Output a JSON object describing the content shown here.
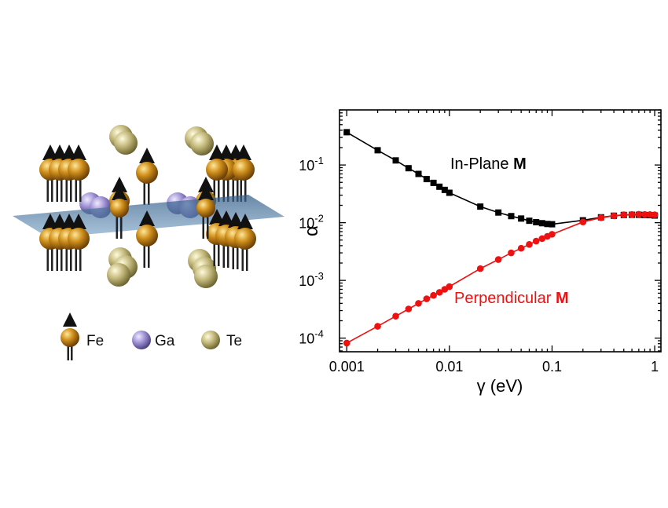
{
  "structure_legend": {
    "items": [
      {
        "label": "Fe",
        "icon": "iron-atom-with-spin-arrow-icon",
        "color": "#c7881a"
      },
      {
        "label": "Ga",
        "icon": "gallium-atom-icon",
        "color": "#9b8fd0"
      },
      {
        "label": "Te",
        "icon": "tellurium-atom-icon",
        "color": "#bfb575"
      }
    ]
  },
  "chart_data": {
    "type": "line",
    "xlabel": "γ (eV)",
    "ylabel": "α",
    "xscale": "log",
    "yscale": "log",
    "xlim": [
      0.00085,
      1.15
    ],
    "ylim": [
      5.8e-05,
      0.9
    ],
    "x_ticks": [
      {
        "value": 0.001,
        "label": "0.001"
      },
      {
        "value": 0.01,
        "label": "0.01"
      },
      {
        "value": 0.1,
        "label": "0.1"
      },
      {
        "value": 1,
        "label": "1"
      }
    ],
    "y_ticks": [
      {
        "value": 0.0001,
        "mantissa": "10",
        "exponent": "-4"
      },
      {
        "value": 0.001,
        "mantissa": "10",
        "exponent": "-3"
      },
      {
        "value": 0.01,
        "mantissa": "10",
        "exponent": "-2"
      },
      {
        "value": 0.1,
        "mantissa": "10",
        "exponent": "-1"
      }
    ],
    "grid": false,
    "series": [
      {
        "name_text": "In-Plane ",
        "name_bold": "M",
        "color": "#000000",
        "marker": "square",
        "x": [
          0.001,
          0.002,
          0.003,
          0.004,
          0.005,
          0.006,
          0.007,
          0.008,
          0.009,
          0.01,
          0.02,
          0.03,
          0.04,
          0.05,
          0.06,
          0.07,
          0.08,
          0.09,
          0.1,
          0.2,
          0.3,
          0.4,
          0.5,
          0.6,
          0.7,
          0.8,
          0.9,
          1.0
        ],
        "y": [
          0.37,
          0.18,
          0.12,
          0.088,
          0.07,
          0.057,
          0.049,
          0.042,
          0.037,
          0.033,
          0.019,
          0.015,
          0.013,
          0.0118,
          0.0108,
          0.0102,
          0.0098,
          0.0095,
          0.0094,
          0.011,
          0.0124,
          0.0132,
          0.0136,
          0.0137,
          0.0137,
          0.0136,
          0.0135,
          0.0133
        ]
      },
      {
        "name_text": "Perpendicular ",
        "name_bold": "M",
        "color": "#ee1111",
        "marker": "circle",
        "x": [
          0.001,
          0.002,
          0.003,
          0.004,
          0.005,
          0.006,
          0.007,
          0.008,
          0.009,
          0.01,
          0.02,
          0.03,
          0.04,
          0.05,
          0.06,
          0.07,
          0.08,
          0.09,
          0.1,
          0.2,
          0.3,
          0.4,
          0.5,
          0.6,
          0.7,
          0.8,
          0.9,
          1.0
        ],
        "y": [
          8.2e-05,
          0.00016,
          0.00024,
          0.00032,
          0.0004,
          0.00048,
          0.00055,
          0.00062,
          0.0007,
          0.00078,
          0.0016,
          0.0023,
          0.003,
          0.0036,
          0.0042,
          0.0048,
          0.0053,
          0.0058,
          0.0063,
          0.0103,
          0.0122,
          0.0132,
          0.0137,
          0.0139,
          0.014,
          0.0139,
          0.0138,
          0.0137
        ]
      }
    ]
  }
}
